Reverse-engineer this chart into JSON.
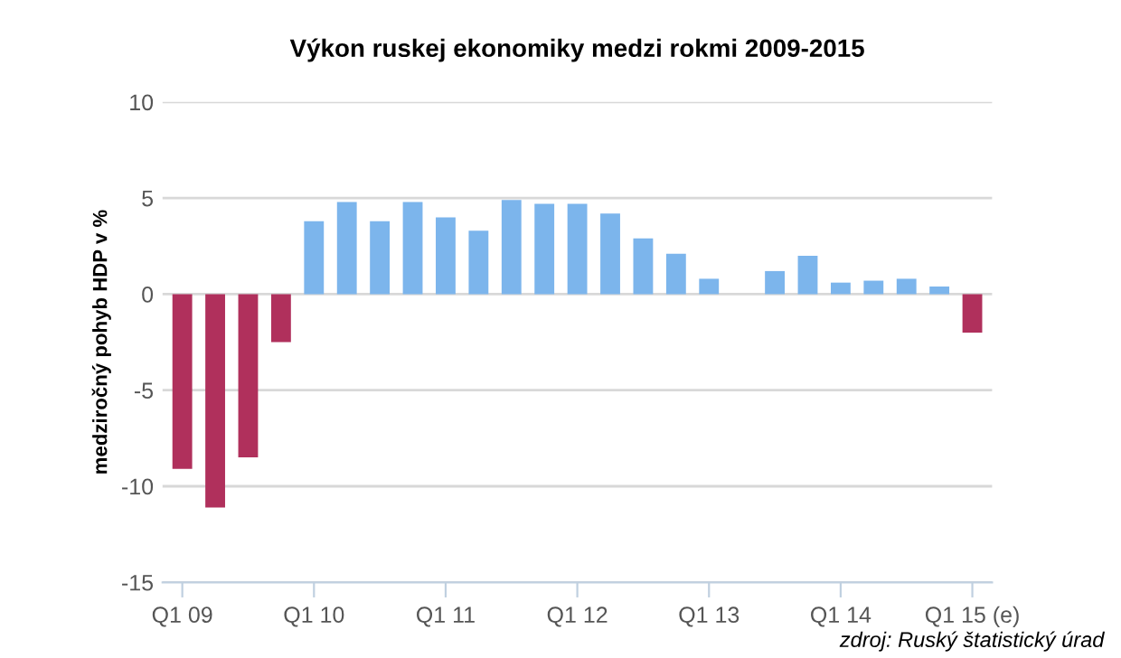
{
  "chart_data": {
    "type": "bar",
    "title": "Výkon ruskej ekonomiky medzi rokmi 2009-2015",
    "ylabel": "medziročný pohyb HDP v %",
    "categories": [
      "Q1 09",
      null,
      null,
      null,
      "Q1 10",
      null,
      null,
      null,
      "Q1 11",
      null,
      null,
      null,
      "Q1 12",
      null,
      null,
      null,
      "Q1 13",
      null,
      null,
      null,
      "Q1 14",
      null,
      null,
      null,
      "Q1 15 (e)"
    ],
    "values": [
      -9.1,
      -11.1,
      -8.5,
      -2.5,
      3.8,
      4.8,
      3.8,
      4.8,
      4.0,
      3.3,
      4.9,
      4.7,
      4.7,
      4.2,
      2.9,
      2.1,
      0.8,
      null,
      1.2,
      2.0,
      0.6,
      0.7,
      0.8,
      0.4,
      -2.0
    ],
    "colors": [
      "#b0305c",
      "#b0305c",
      "#b0305c",
      "#b0305c",
      "#7cb5ec",
      "#7cb5ec",
      "#7cb5ec",
      "#7cb5ec",
      "#7cb5ec",
      "#7cb5ec",
      "#7cb5ec",
      "#7cb5ec",
      "#7cb5ec",
      "#7cb5ec",
      "#7cb5ec",
      "#7cb5ec",
      "#7cb5ec",
      "#7cb5ec",
      "#7cb5ec",
      "#7cb5ec",
      "#7cb5ec",
      "#7cb5ec",
      "#7cb5ec",
      "#7cb5ec",
      "#b0305c"
    ],
    "ylim": [
      -15,
      10
    ],
    "yticks": [
      -15,
      -10,
      -5,
      0,
      5,
      10
    ],
    "grid": "y",
    "annotations": [
      "zdroj: Ruský štatistický úrad"
    ]
  }
}
